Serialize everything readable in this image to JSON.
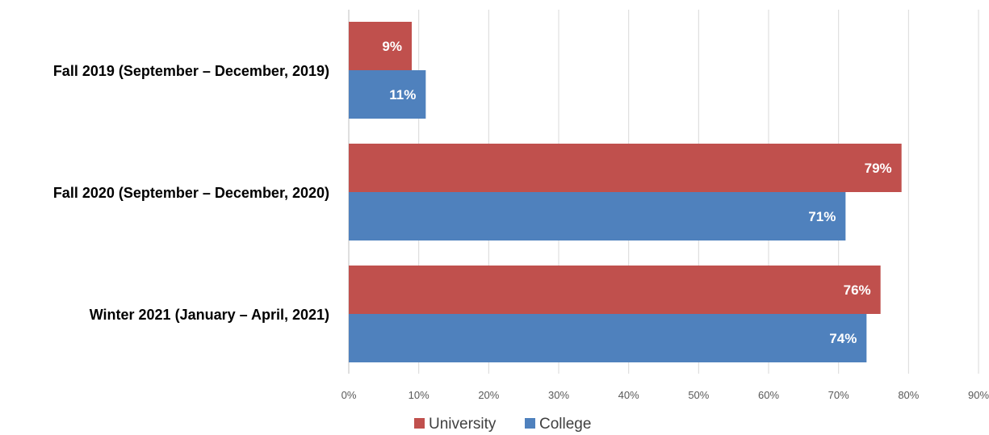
{
  "chart_data": {
    "type": "bar",
    "orientation": "horizontal",
    "categories": [
      "Fall 2019 (September – December, 2019)",
      "Fall 2020 (September – December, 2020)",
      "Winter 2021 (January – April, 2021)"
    ],
    "series": [
      {
        "name": "University",
        "color": "#C0504D",
        "values": [
          9,
          79,
          76
        ],
        "labels": [
          "9%",
          "79%",
          "76%"
        ]
      },
      {
        "name": "College",
        "color": "#4F81BD",
        "values": [
          11,
          71,
          74
        ],
        "labels": [
          "11%",
          "71%",
          "74%"
        ]
      }
    ],
    "xlim": [
      0,
      90
    ],
    "xticks": [
      0,
      10,
      20,
      30,
      40,
      50,
      60,
      70,
      80,
      90
    ],
    "xtick_labels": [
      "0%",
      "10%",
      "20%",
      "30%",
      "40%",
      "50%",
      "60%",
      "70%",
      "80%",
      "90%"
    ],
    "grid": true,
    "legend_position": "bottom"
  }
}
